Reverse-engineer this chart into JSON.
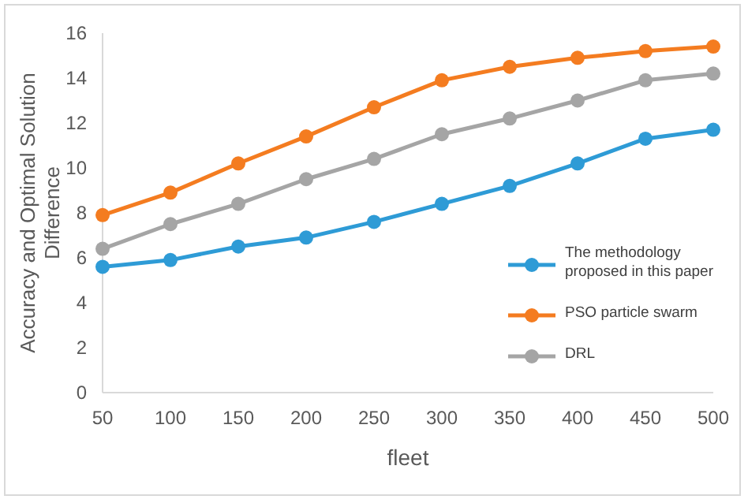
{
  "chart_data": {
    "type": "line",
    "xlabel": "fleet",
    "ylabel": "Accuracy and Optimal Solution Difference",
    "categories": [
      "50",
      "100",
      "150",
      "200",
      "250",
      "300",
      "350",
      "400",
      "450",
      "500"
    ],
    "series": [
      {
        "name": "The methodology proposed in this paper",
        "color": "#2e9bd6",
        "values": [
          5.6,
          5.9,
          6.5,
          6.9,
          7.6,
          8.4,
          9.2,
          10.2,
          11.3,
          11.7
        ]
      },
      {
        "name": "PSO particle swarm",
        "color": "#f47c20",
        "values": [
          7.9,
          8.9,
          10.2,
          11.4,
          12.7,
          13.9,
          14.5,
          14.9,
          15.2,
          15.4
        ]
      },
      {
        "name": "DRL",
        "color": "#a5a5a5",
        "values": [
          6.4,
          7.5,
          8.4,
          9.5,
          10.4,
          11.5,
          12.2,
          13.0,
          13.9,
          14.2
        ]
      }
    ],
    "ylim": [
      0,
      16
    ],
    "yticks": [
      0,
      2,
      4,
      6,
      8,
      10,
      12,
      14,
      16
    ],
    "marker": "circle",
    "line_style": "solid",
    "legend": "right",
    "grid": false
  }
}
